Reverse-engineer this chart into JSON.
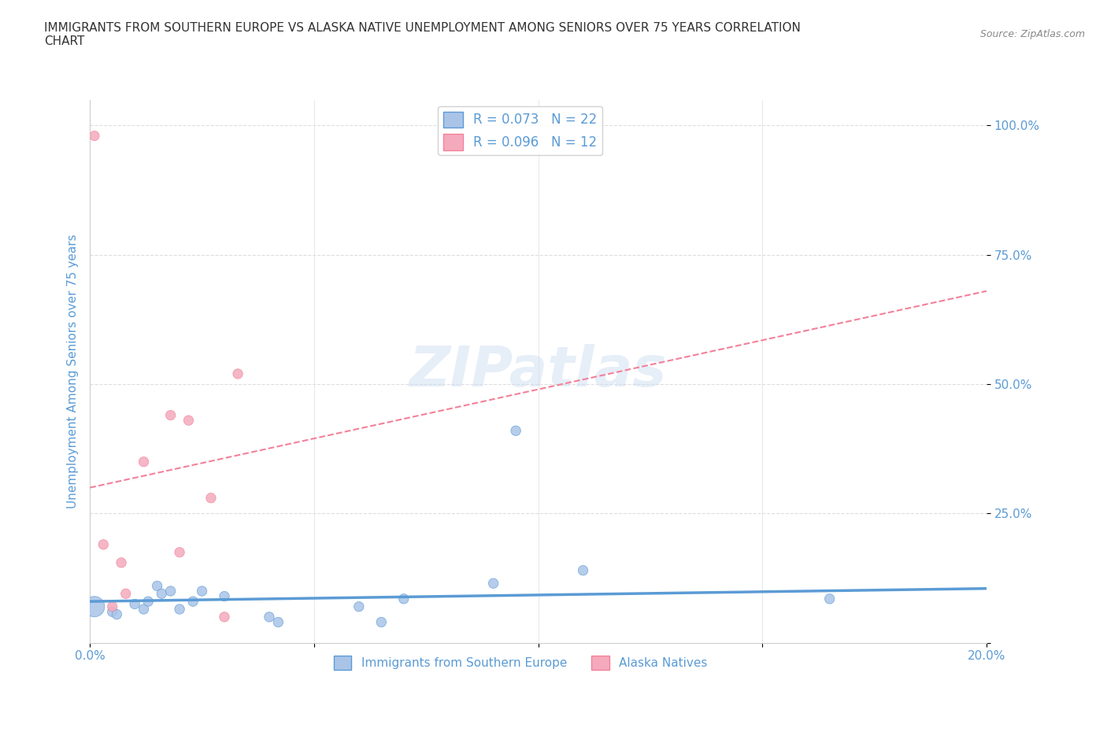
{
  "title": "IMMIGRANTS FROM SOUTHERN EUROPE VS ALASKA NATIVE UNEMPLOYMENT AMONG SENIORS OVER 75 YEARS CORRELATION\nCHART",
  "source": "Source: ZipAtlas.com",
  "xlabel_bottom": "",
  "ylabel": "Unemployment Among Seniors over 75 years",
  "xlim": [
    0.0,
    0.2
  ],
  "ylim": [
    0.0,
    1.05
  ],
  "x_ticks": [
    0.0,
    0.05,
    0.1,
    0.15,
    0.2
  ],
  "x_tick_labels": [
    "0.0%",
    "",
    "",
    "",
    "20.0%"
  ],
  "y_ticks": [
    0.0,
    0.25,
    0.5,
    0.75,
    1.0
  ],
  "y_tick_labels": [
    "",
    "25.0%",
    "50.0%",
    "75.0%",
    "100.0%"
  ],
  "legend_items": [
    {
      "label": "R = 0.073   N = 22",
      "color": "#aac4e8"
    },
    {
      "label": "R = 0.096   N = 12",
      "color": "#f4aabc"
    }
  ],
  "legend_labels_bottom": [
    "Immigrants from Southern Europe",
    "Alaska Natives"
  ],
  "legend_colors_bottom": [
    "#aac4e8",
    "#f4aabc"
  ],
  "blue_scatter_x": [
    0.001,
    0.005,
    0.006,
    0.01,
    0.012,
    0.013,
    0.015,
    0.016,
    0.018,
    0.02,
    0.023,
    0.025,
    0.03,
    0.04,
    0.042,
    0.06,
    0.065,
    0.07,
    0.09,
    0.095,
    0.11,
    0.165
  ],
  "blue_scatter_y": [
    0.07,
    0.06,
    0.055,
    0.075,
    0.065,
    0.08,
    0.11,
    0.095,
    0.1,
    0.065,
    0.08,
    0.1,
    0.09,
    0.05,
    0.04,
    0.07,
    0.04,
    0.085,
    0.115,
    0.41,
    0.14,
    0.085
  ],
  "blue_scatter_sizes": [
    350,
    80,
    80,
    80,
    80,
    80,
    80,
    80,
    80,
    80,
    80,
    80,
    80,
    80,
    80,
    80,
    80,
    80,
    80,
    80,
    80,
    80
  ],
  "pink_scatter_x": [
    0.001,
    0.003,
    0.005,
    0.007,
    0.008,
    0.012,
    0.018,
    0.02,
    0.022,
    0.027,
    0.03,
    0.033
  ],
  "pink_scatter_y": [
    0.98,
    0.19,
    0.07,
    0.155,
    0.095,
    0.35,
    0.44,
    0.175,
    0.43,
    0.28,
    0.05,
    0.52
  ],
  "pink_scatter_sizes": [
    80,
    80,
    80,
    80,
    80,
    80,
    80,
    80,
    80,
    80,
    80,
    80
  ],
  "blue_line_x": [
    0.0,
    0.2
  ],
  "blue_line_y": [
    0.08,
    0.105
  ],
  "pink_line_x": [
    0.0,
    0.2
  ],
  "pink_line_y": [
    0.3,
    0.68
  ],
  "blue_color": "#5b9bd5",
  "pink_color": "#f48099",
  "blue_fill": "#aac4e8",
  "pink_fill": "#f4aabc",
  "grid_color": "#dddddd",
  "watermark": "ZIPatlas",
  "background_color": "#ffffff",
  "title_color": "#333333",
  "axis_label_color": "#5b9bd5",
  "tick_color": "#5b9bd5"
}
